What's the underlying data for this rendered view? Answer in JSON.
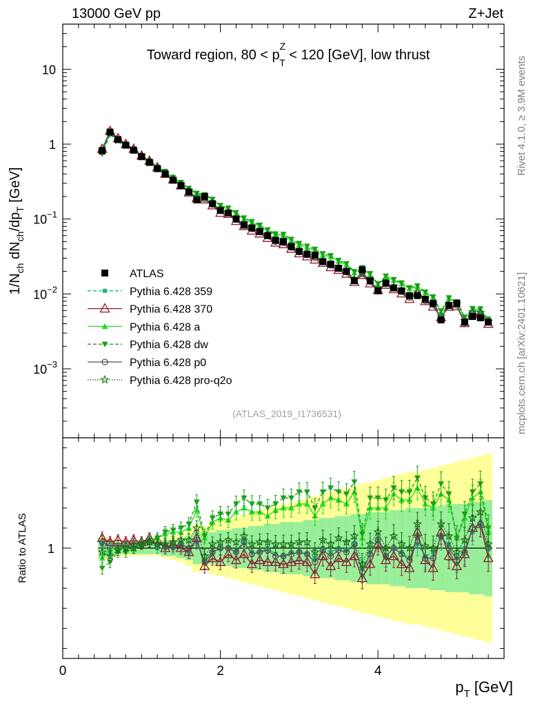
{
  "header": {
    "left": "13000 GeV pp",
    "right": "Z+Jet"
  },
  "side_labels": {
    "rivet": "Rivet 4.1.0, ≥ 3.9M events",
    "mcplots": "mcplots.cern.ch [arXiv:2401.10621]"
  },
  "chart_data": [
    {
      "type": "scatter",
      "panel": "main",
      "title_parts": {
        "before": "Toward region, 80 < p",
        "sup": "Z",
        "sub": "T",
        "after": " < 120 [GeV], low thrust"
      },
      "analysis_id": "(ATLAS_2019_I1736531)",
      "ylabel_parts": {
        "a": "1/N",
        "a_sub": "ch",
        "b": " dN",
        "b_sub": "ch",
        "c": "/dp",
        "c_sub": "T",
        "d": " [GeV]"
      },
      "yscale": "log",
      "ylim": [
        0.00012,
        40
      ],
      "xlim": [
        0,
        5.6
      ],
      "y_ticks": [
        {
          "v": 10,
          "label": "10"
        },
        {
          "v": 1,
          "label": "1"
        },
        {
          "v": 0.1,
          "base": "10",
          "exp": "−1"
        },
        {
          "v": 0.01,
          "base": "10",
          "exp": "−2"
        },
        {
          "v": 0.001,
          "base": "10",
          "exp": "−3"
        }
      ],
      "legend": [
        {
          "name": "ATLAS",
          "color": "#000000",
          "marker": "square",
          "dash": ""
        },
        {
          "name": "Pythia 6.428 359",
          "color": "#1fb38a",
          "marker": "small-square",
          "dash": "5,3"
        },
        {
          "name": "Pythia 6.428 370",
          "color": "#8b1a2e",
          "marker": "open-triangle",
          "dash": ""
        },
        {
          "name": "Pythia 6.428 a",
          "color": "#22dd22",
          "marker": "triangle",
          "dash": ""
        },
        {
          "name": "Pythia 6.428 dw",
          "color": "#19a019",
          "marker": "down-triangle",
          "dash": "5,3"
        },
        {
          "name": "Pythia 6.428 p0",
          "color": "#555555",
          "marker": "open-circle",
          "dash": ""
        },
        {
          "name": "Pythia 6.428 pro-q2o",
          "color": "#156f15",
          "marker": "open-star",
          "dash": "1.5,2"
        }
      ],
      "x": [
        0.5,
        0.6,
        0.7,
        0.8,
        0.9,
        1.0,
        1.1,
        1.2,
        1.3,
        1.4,
        1.5,
        1.6,
        1.7,
        1.8,
        1.9,
        2.0,
        2.1,
        2.2,
        2.3,
        2.4,
        2.5,
        2.6,
        2.7,
        2.8,
        2.9,
        3.0,
        3.1,
        3.2,
        3.3,
        3.4,
        3.5,
        3.6,
        3.7,
        3.8,
        3.9,
        4.0,
        4.1,
        4.2,
        4.3,
        4.4,
        4.5,
        4.6,
        4.7,
        4.8,
        4.9,
        5.0,
        5.1,
        5.2,
        5.3,
        5.4
      ],
      "series": [
        {
          "name": "ATLAS",
          "values": [
            0.82,
            1.45,
            1.15,
            0.97,
            0.83,
            0.68,
            0.57,
            0.47,
            0.4,
            0.33,
            0.28,
            0.23,
            0.18,
            0.2,
            0.16,
            0.13,
            0.12,
            0.1,
            0.083,
            0.076,
            0.068,
            0.06,
            0.052,
            0.05,
            0.043,
            0.037,
            0.034,
            0.033,
            0.027,
            0.025,
            0.022,
            0.02,
            0.015,
            0.021,
            0.015,
            0.011,
            0.014,
            0.012,
            0.011,
            0.0095,
            0.0095,
            0.0085,
            0.0075,
            0.0045,
            0.007,
            0.0075,
            0.0042,
            0.005,
            0.0048,
            0.0042
          ]
        }
      ]
    },
    {
      "type": "scatter",
      "panel": "ratio",
      "ylabel": "Ratio to ATLAS",
      "ylim": [
        0.45,
        1.55
      ],
      "xlim": [
        0,
        5.6
      ],
      "xlabel_parts": {
        "a": "p",
        "sub": "T",
        "b": " [GeV]"
      },
      "x_ticks": [
        0,
        2,
        4
      ],
      "y_ticks": [
        1
      ],
      "x": [
        0.5,
        0.6,
        0.7,
        0.8,
        0.9,
        1.0,
        1.1,
        1.2,
        1.3,
        1.4,
        1.5,
        1.6,
        1.7,
        1.8,
        1.9,
        2.0,
        2.1,
        2.2,
        2.3,
        2.4,
        2.5,
        2.6,
        2.7,
        2.8,
        2.9,
        3.0,
        3.1,
        3.2,
        3.3,
        3.4,
        3.5,
        3.6,
        3.7,
        3.8,
        3.9,
        4.0,
        4.1,
        4.2,
        4.3,
        4.4,
        4.5,
        4.6,
        4.7,
        4.8,
        4.9,
        5.0,
        5.1,
        5.2,
        5.3,
        5.4
      ],
      "band_inner": [
        0.05,
        0.04,
        0.03,
        0.03,
        0.03,
        0.03,
        0.03,
        0.03,
        0.04,
        0.04,
        0.05,
        0.06,
        0.08,
        0.07,
        0.08,
        0.09,
        0.09,
        0.1,
        0.1,
        0.11,
        0.11,
        0.12,
        0.12,
        0.13,
        0.13,
        0.13,
        0.14,
        0.14,
        0.15,
        0.15,
        0.16,
        0.16,
        0.17,
        0.17,
        0.18,
        0.18,
        0.18,
        0.19,
        0.19,
        0.2,
        0.2,
        0.2,
        0.21,
        0.21,
        0.22,
        0.22,
        0.22,
        0.23,
        0.23,
        0.24
      ],
      "band_outer": [
        0.06,
        0.05,
        0.04,
        0.04,
        0.04,
        0.04,
        0.04,
        0.04,
        0.05,
        0.06,
        0.07,
        0.09,
        0.12,
        0.11,
        0.13,
        0.14,
        0.15,
        0.16,
        0.17,
        0.18,
        0.19,
        0.2,
        0.21,
        0.22,
        0.23,
        0.24,
        0.25,
        0.26,
        0.27,
        0.28,
        0.29,
        0.3,
        0.31,
        0.32,
        0.33,
        0.34,
        0.35,
        0.36,
        0.37,
        0.38,
        0.38,
        0.39,
        0.4,
        0.41,
        0.42,
        0.43,
        0.44,
        0.45,
        0.46,
        0.47
      ],
      "series": [
        {
          "name": "Pythia 6.428 359",
          "values": [
            1.02,
            0.98,
            1.0,
            1.0,
            1.0,
            1.02,
            1.03,
            1.0,
            1.0,
            1.0,
            1.02,
            0.98,
            1.03,
            0.93,
            0.98,
            1.0,
            1.0,
            0.98,
            1.04,
            0.98,
            0.98,
            1.0,
            0.97,
            0.96,
            0.98,
            0.98,
            0.97,
            0.95,
            1.0,
            0.98,
            1.0,
            0.99,
            1.02,
            0.9,
            0.98,
            1.05,
            0.96,
            1.0,
            0.98,
            0.95,
            1.02,
            0.96,
            0.98,
            1.05,
            1.02,
            0.95,
            1.0,
            1.08,
            1.12,
            1.0
          ]
        },
        {
          "name": "Pythia 6.428 370",
          "values": [
            1.05,
            1.03,
            1.04,
            1.03,
            1.04,
            1.03,
            1.05,
            1.04,
            1.0,
            1.02,
            1.0,
            0.98,
            1.05,
            0.91,
            0.95,
            0.93,
            0.97,
            0.94,
            0.97,
            0.92,
            0.94,
            0.93,
            0.93,
            0.92,
            0.93,
            0.94,
            0.93,
            0.87,
            0.96,
            0.91,
            0.95,
            0.93,
            0.96,
            0.85,
            0.92,
            1.02,
            0.94,
            0.96,
            0.92,
            0.9,
            1.08,
            0.94,
            0.9,
            1.08,
            0.96,
            0.91,
            0.97,
            1.1,
            1.12,
            0.95
          ]
        },
        {
          "name": "Pythia 6.428 a",
          "values": [
            0.95,
            1.0,
            1.0,
            1.01,
            1.01,
            1.02,
            1.03,
            1.05,
            1.07,
            1.08,
            1.08,
            1.1,
            1.19,
            1.05,
            1.13,
            1.15,
            1.14,
            1.18,
            1.2,
            1.18,
            1.18,
            1.16,
            1.19,
            1.2,
            1.2,
            1.22,
            1.22,
            1.16,
            1.22,
            1.25,
            1.24,
            1.22,
            1.28,
            1.05,
            1.2,
            1.2,
            1.2,
            1.27,
            1.24,
            1.24,
            1.3,
            1.22,
            1.2,
            1.27,
            1.24,
            1.05,
            1.15,
            1.25,
            1.28,
            1.08
          ]
        },
        {
          "name": "Pythia 6.428 dw",
          "values": [
            0.9,
            0.93,
            0.98,
            0.98,
            1.0,
            1.02,
            1.04,
            1.05,
            1.08,
            1.09,
            1.1,
            1.12,
            1.23,
            1.06,
            1.15,
            1.17,
            1.17,
            1.22,
            1.25,
            1.22,
            1.22,
            1.2,
            1.22,
            1.25,
            1.25,
            1.28,
            1.28,
            1.2,
            1.28,
            1.3,
            1.28,
            1.27,
            1.33,
            1.07,
            1.25,
            1.25,
            1.24,
            1.3,
            1.28,
            1.28,
            1.35,
            1.25,
            1.22,
            1.32,
            1.27,
            1.05,
            1.17,
            1.28,
            1.32,
            1.1
          ]
        },
        {
          "name": "Pythia 6.428 p0",
          "values": [
            1.03,
            1.01,
            1.01,
            1.01,
            1.02,
            1.02,
            1.03,
            1.02,
            1.01,
            1.01,
            1.02,
            1.0,
            1.04,
            0.93,
            0.98,
            1.0,
            1.0,
            0.98,
            1.03,
            0.97,
            0.98,
            0.99,
            0.96,
            0.96,
            0.97,
            0.98,
            0.97,
            0.93,
            0.99,
            0.96,
            0.99,
            0.98,
            1.02,
            0.88,
            0.97,
            1.04,
            0.96,
            1.0,
            0.97,
            0.94,
            1.06,
            0.95,
            0.95,
            1.06,
            1.0,
            0.94,
            0.98,
            1.1,
            1.12,
            1.0
          ]
        },
        {
          "name": "Pythia 6.428 pro-q2o",
          "values": [
            0.98,
            0.96,
            0.99,
            1.0,
            1.0,
            1.02,
            1.03,
            1.02,
            1.02,
            1.03,
            1.04,
            1.04,
            1.1,
            0.96,
            1.02,
            1.03,
            1.04,
            1.03,
            1.06,
            1.02,
            1.03,
            1.03,
            1.02,
            1.02,
            1.02,
            1.03,
            1.03,
            0.98,
            1.04,
            1.02,
            1.05,
            1.03,
            1.06,
            0.92,
            1.02,
            1.08,
            1.0,
            1.06,
            1.02,
            1.0,
            1.12,
            1.01,
            1.0,
            1.12,
            1.06,
            0.98,
            1.04,
            1.15,
            1.18,
            1.02
          ]
        }
      ]
    }
  ]
}
